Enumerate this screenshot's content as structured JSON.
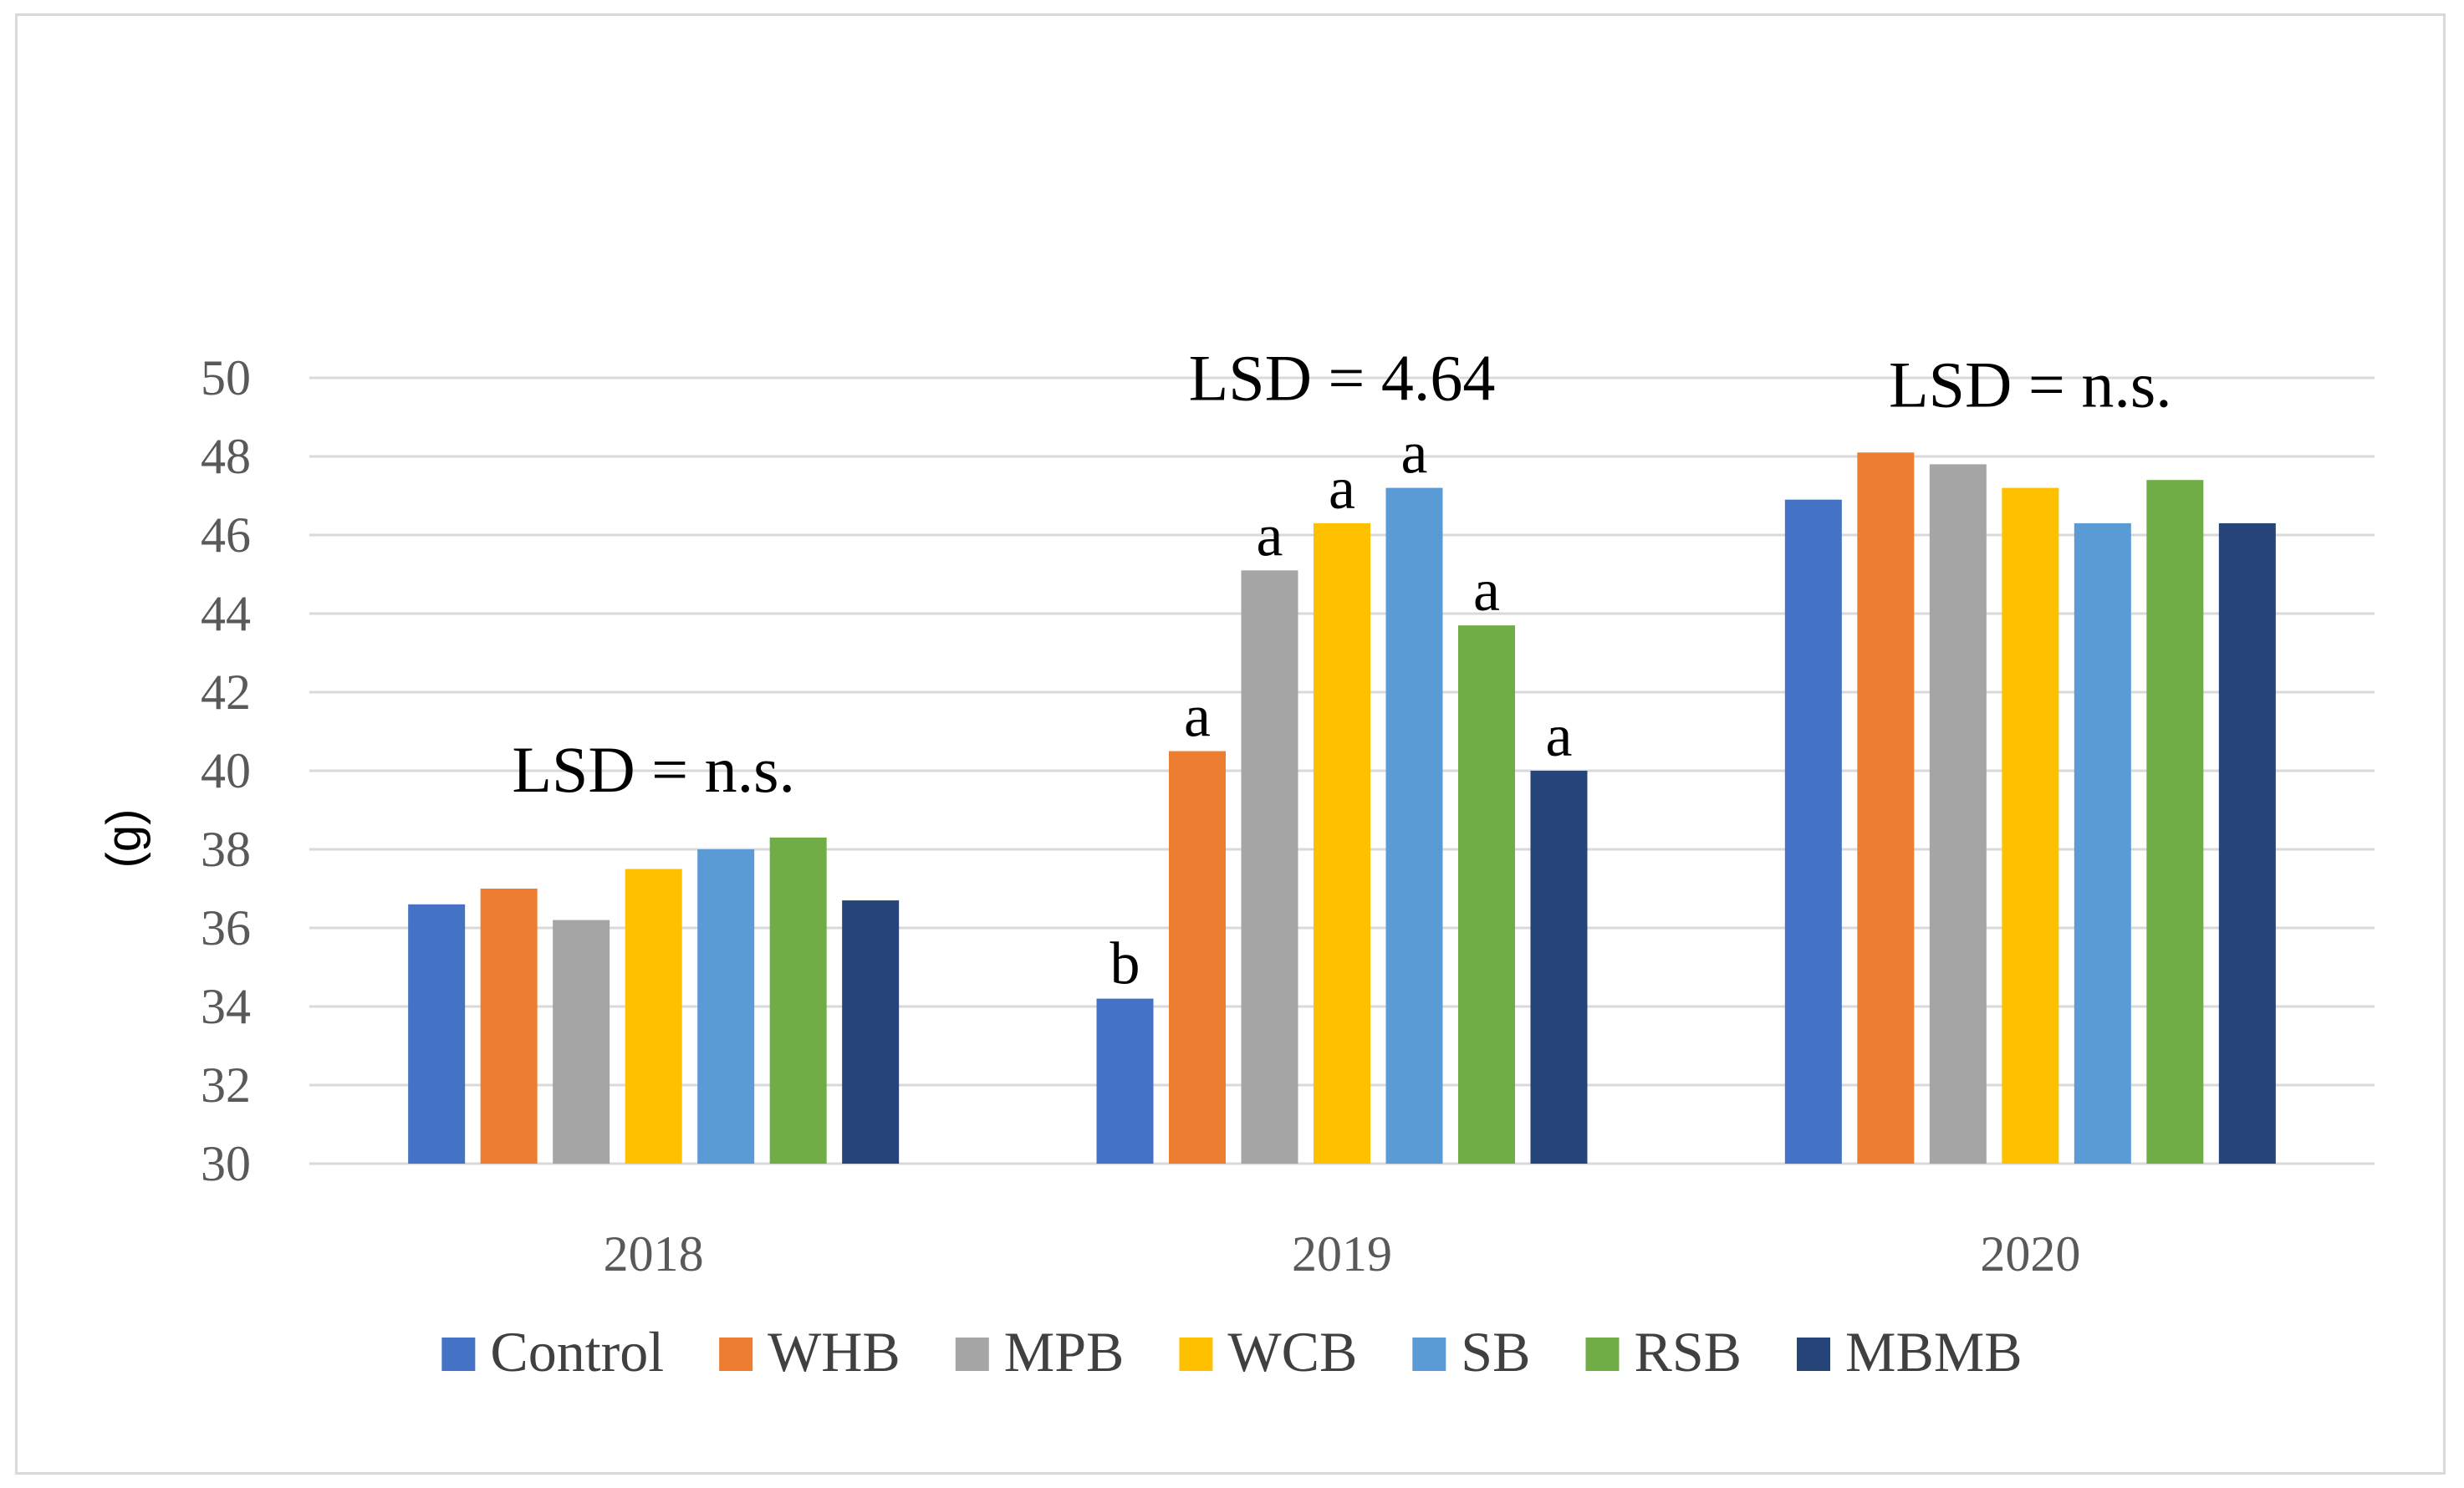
{
  "chart_data": {
    "type": "bar",
    "title": "",
    "xlabel": "",
    "ylabel": "(g)",
    "ylim": [
      30,
      50
    ],
    "yticks": [
      "30",
      "32",
      "34",
      "36",
      "38",
      "40",
      "42",
      "44",
      "46",
      "48",
      "50"
    ],
    "grid": true,
    "legend_position": "bottom",
    "categories": [
      "2018",
      "2019",
      "2020"
    ],
    "series": [
      {
        "name": "Control",
        "color": "#4472c4",
        "values": [
          36.6,
          34.2,
          46.9
        ],
        "labels": [
          "",
          "b",
          ""
        ]
      },
      {
        "name": "WHB",
        "color": "#ed7d31",
        "values": [
          37.0,
          40.5,
          48.1
        ],
        "labels": [
          "",
          "a",
          ""
        ]
      },
      {
        "name": "MPB",
        "color": "#a5a5a5",
        "values": [
          36.2,
          45.1,
          47.8
        ],
        "labels": [
          "",
          "a",
          ""
        ]
      },
      {
        "name": "WCB",
        "color": "#ffc000",
        "values": [
          37.5,
          46.3,
          47.2
        ],
        "labels": [
          "",
          "a",
          ""
        ]
      },
      {
        "name": "SB",
        "color": "#5b9bd5",
        "values": [
          38.0,
          47.2,
          46.3
        ],
        "labels": [
          "",
          "a",
          ""
        ]
      },
      {
        "name": "RSB",
        "color": "#70ad47",
        "values": [
          38.3,
          43.7,
          47.4
        ],
        "labels": [
          "",
          "a",
          ""
        ]
      },
      {
        "name": "MBMB",
        "color": "#264478",
        "values": [
          36.7,
          40.0,
          46.3
        ],
        "labels": [
          "",
          "a",
          ""
        ]
      }
    ],
    "group_annotations": [
      "LSD = n.s.",
      "LSD = 4.64",
      "LSD = n.s."
    ]
  }
}
